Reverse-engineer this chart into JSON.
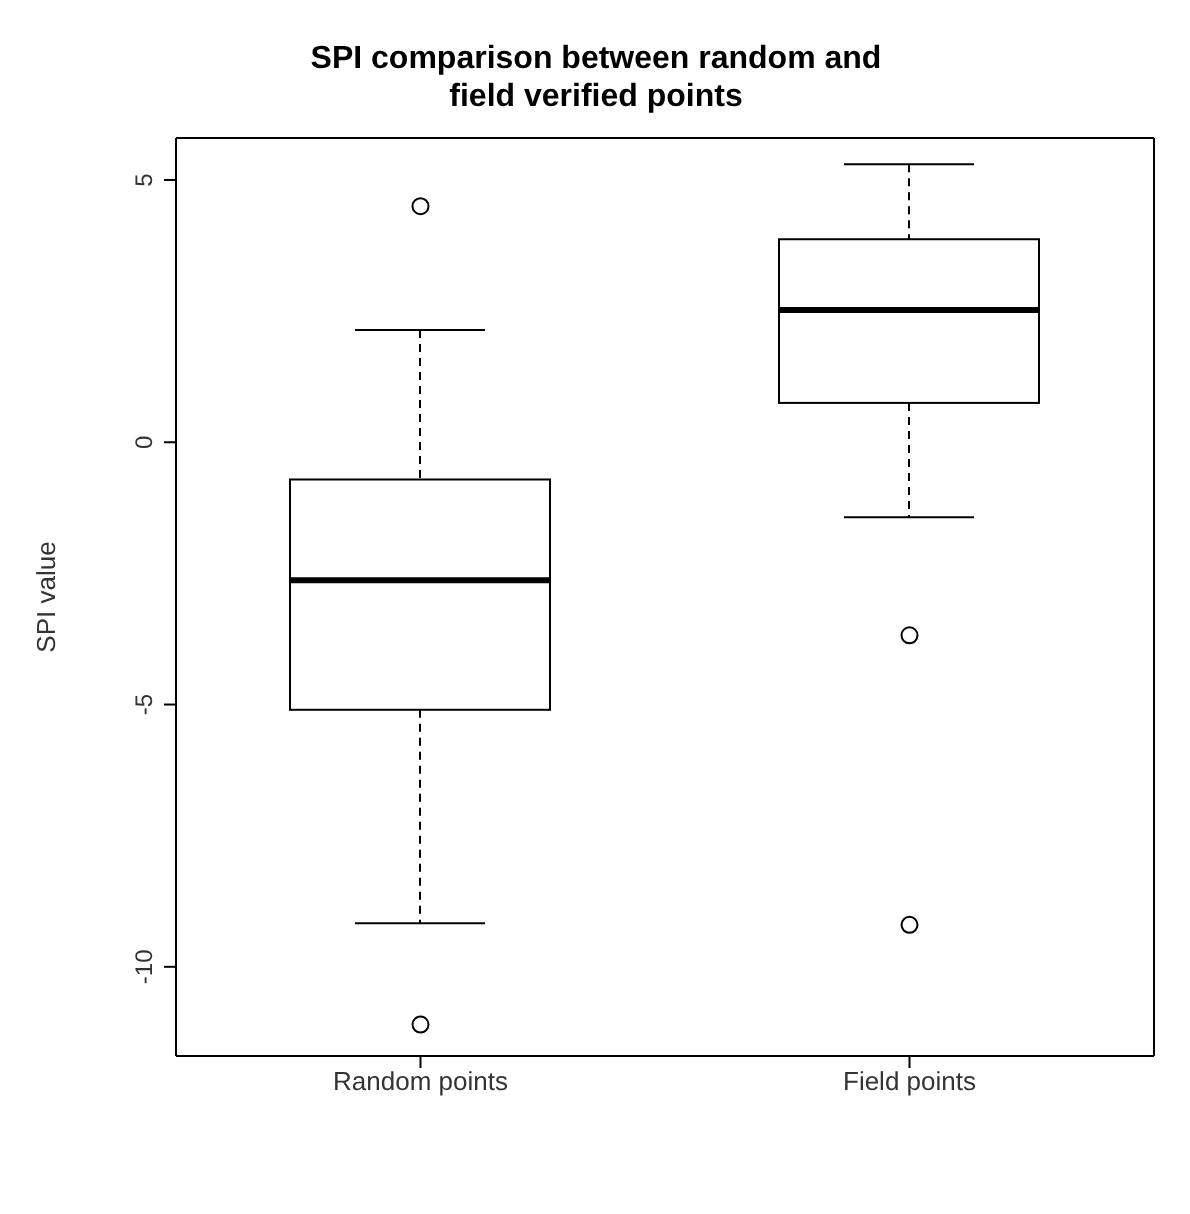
{
  "chart_data": {
    "type": "box",
    "title": "SPI comparison between random and field verified points",
    "ylabel": "SPI value",
    "categories": [
      "Random points",
      "Field points"
    ],
    "boxes": [
      {
        "low": -9.17,
        "q1": -5.1,
        "median": -2.63,
        "q3": -0.71,
        "high": 2.14,
        "outliers": [
          4.5,
          -11.1
        ]
      },
      {
        "low": -1.43,
        "q1": 0.75,
        "median": 2.52,
        "q3": 3.87,
        "high": 5.3,
        "outliers": [
          -3.68,
          -9.2
        ]
      }
    ],
    "ylim": [
      -11.7,
      5.8
    ],
    "yticks": [
      -10,
      -5,
      0,
      5
    ],
    "grid": false,
    "legend": false
  }
}
